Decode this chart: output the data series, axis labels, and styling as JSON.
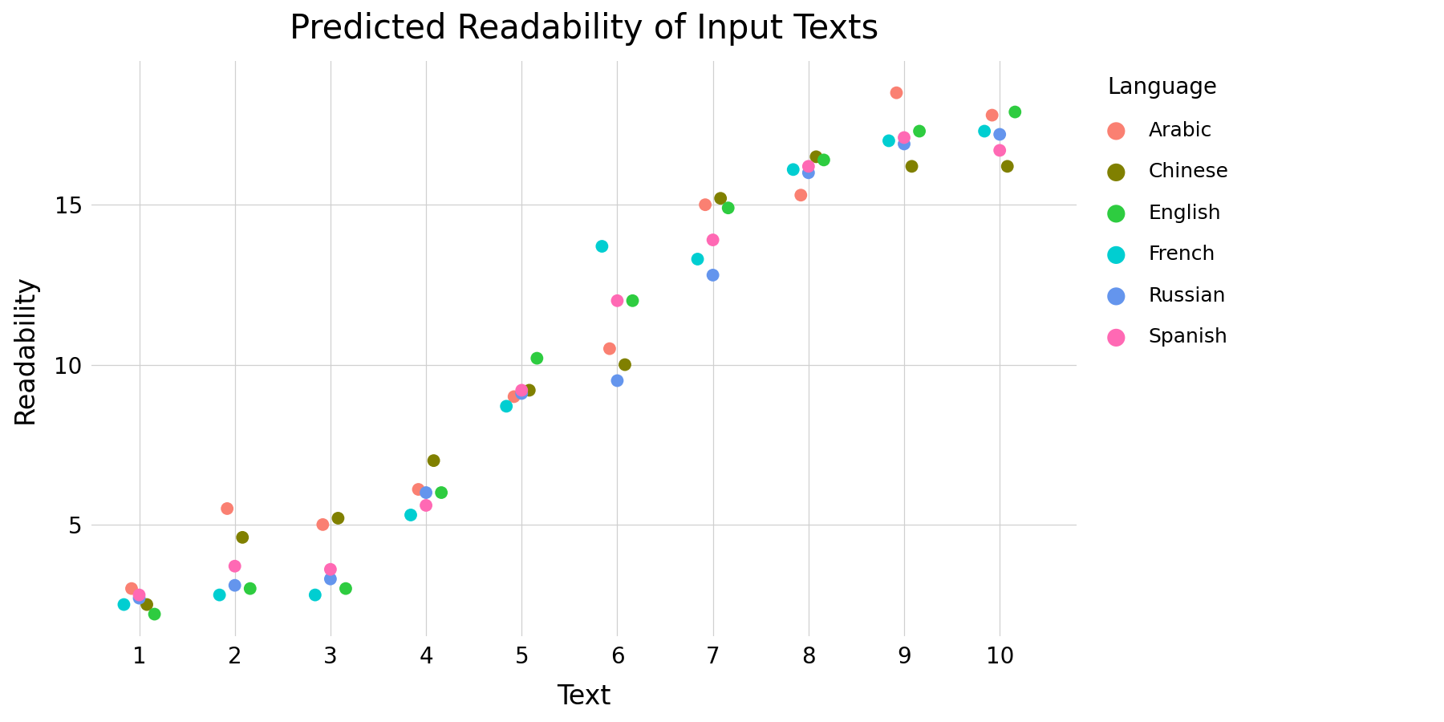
{
  "title": "Predicted Readability of Input Texts",
  "xlabel": "Text",
  "ylabel": "Readability",
  "background_color": "#ffffff",
  "grid_color": "#d0d0d0",
  "languages": [
    "Arabic",
    "Chinese",
    "English",
    "French",
    "Russian",
    "Spanish"
  ],
  "colors": {
    "Arabic": "#FA8072",
    "Chinese": "#808000",
    "English": "#2ECC40",
    "French": "#00CED1",
    "Russian": "#6495ED",
    "Spanish": "#FF69B4"
  },
  "data": {
    "Arabic": [
      3.0,
      5.5,
      5.0,
      6.1,
      9.0,
      10.5,
      15.0,
      15.3,
      18.5,
      17.8
    ],
    "Chinese": [
      2.5,
      4.6,
      5.2,
      7.0,
      9.2,
      10.0,
      15.2,
      16.5,
      16.2,
      16.2
    ],
    "English": [
      2.2,
      3.0,
      3.0,
      6.0,
      10.2,
      12.0,
      14.9,
      16.4,
      17.3,
      17.9
    ],
    "French": [
      2.5,
      2.8,
      2.8,
      5.3,
      8.7,
      13.7,
      13.3,
      16.1,
      17.0,
      17.3
    ],
    "Russian": [
      2.7,
      3.1,
      3.3,
      6.0,
      9.1,
      9.5,
      12.8,
      16.0,
      16.9,
      17.2
    ],
    "Spanish": [
      2.8,
      3.7,
      3.6,
      5.6,
      9.2,
      12.0,
      13.9,
      16.2,
      17.1,
      16.7
    ]
  },
  "x_ticks": [
    1,
    2,
    3,
    4,
    5,
    6,
    7,
    8,
    9,
    10
  ],
  "ylim": [
    1.5,
    19.5
  ],
  "xlim": [
    0.5,
    10.8
  ],
  "title_fontsize": 30,
  "label_fontsize": 24,
  "tick_fontsize": 20,
  "legend_title_fontsize": 20,
  "legend_fontsize": 18,
  "marker_size": 130
}
